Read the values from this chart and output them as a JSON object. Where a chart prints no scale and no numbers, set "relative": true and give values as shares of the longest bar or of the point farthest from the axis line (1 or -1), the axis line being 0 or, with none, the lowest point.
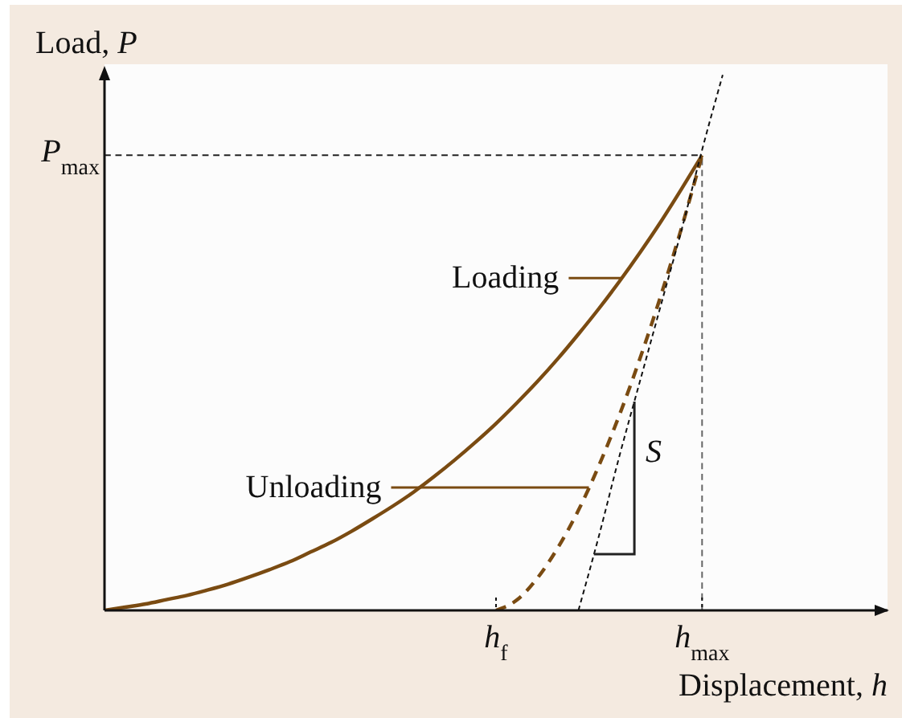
{
  "chart_data": {
    "type": "line",
    "relative": true,
    "ylabel": "Load, P",
    "xlabel": "Displacement, h",
    "categories": [
      null,
      null,
      null,
      null,
      null,
      null,
      null,
      null,
      null,
      null,
      null,
      null,
      null,
      null,
      null,
      null,
      null,
      null,
      null,
      "h$_{f}$",
      null,
      null,
      null,
      null,
      null,
      null,
      null,
      null,
      null,
      "h$_{max}$",
      null,
      null,
      null,
      null,
      null,
      null,
      null,
      null,
      null
    ],
    "series": [
      {
        "name": "Loading",
        "color": "#7a4b12",
        "line_style": "solid",
        "values": [
          0,
          0.006,
          0.012,
          0.02,
          0.028,
          0.038,
          0.049,
          0.062,
          0.076,
          0.091,
          0.109,
          0.127,
          0.148,
          0.171,
          0.195,
          0.221,
          0.25,
          0.281,
          0.314,
          0.349,
          0.387,
          0.427,
          0.47,
          0.516,
          0.564,
          0.615,
          0.669,
          0.726,
          0.787,
          0.85,
          null,
          null,
          null,
          null,
          null,
          null,
          null,
          null,
          null
        ]
      },
      {
        "name": "Unloading",
        "color": "#7a4b12",
        "line_style": "dashed",
        "values": [
          null,
          null,
          null,
          null,
          null,
          null,
          null,
          null,
          null,
          null,
          null,
          null,
          null,
          null,
          null,
          null,
          null,
          null,
          null,
          0,
          0.019,
          0.06,
          0.117,
          0.187,
          0.271,
          0.366,
          0.472,
          0.588,
          0.714,
          0.85,
          null,
          null,
          null,
          null,
          null,
          null,
          null,
          null,
          null
        ]
      },
      {
        "color": "#111111",
        "line_style": "dashed",
        "values": [
          null,
          null,
          null,
          null,
          null,
          null,
          null,
          null,
          null,
          null,
          null,
          null,
          null,
          null,
          null,
          null,
          null,
          null,
          null,
          null,
          null,
          null,
          null,
          0,
          0.14,
          0.29,
          0.43,
          0.57,
          0.71,
          0.86,
          1,
          null,
          null,
          null,
          null,
          null,
          null,
          null,
          null
        ]
      }
    ],
    "ref_lines": [
      {
        "axis": "y",
        "value": 0.85,
        "label": "P$_{max}$",
        "color": "#222222",
        "line_style": "dashed"
      },
      {
        "axis": "x",
        "value": "h$_{max}$",
        "color": "#666666",
        "line_style": "dashed"
      }
    ],
    "annotations": [
      "S"
    ]
  }
}
